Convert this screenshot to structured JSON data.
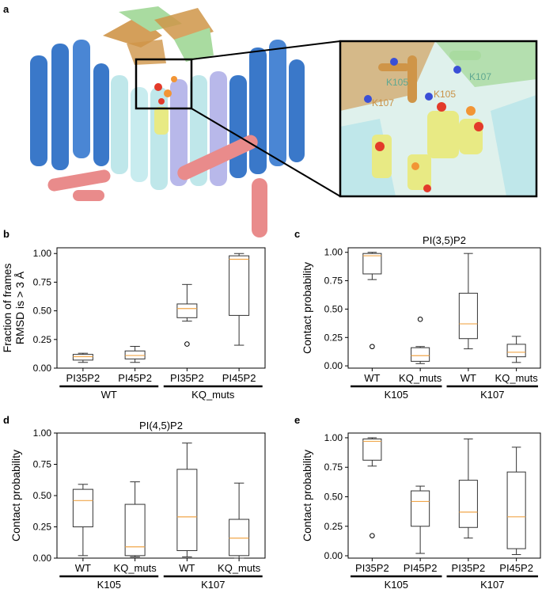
{
  "panels": {
    "a": "a",
    "b": "b",
    "c": "c",
    "d": "d",
    "e": "e"
  },
  "structure_inset": {
    "labels": [
      "K105",
      "K107",
      "K105",
      "K107"
    ],
    "label_colors": [
      "#5fa891",
      "#5fa891",
      "#c99146",
      "#c99146"
    ]
  },
  "colors": {
    "box": "#333333",
    "median": "#f0a64a",
    "helix_blue": "#3a78c9",
    "helix_cyan": "#bfe7ea",
    "helix_lavender": "#b8b8ea",
    "helix_pink": "#e98b8b",
    "beta_orange": "#cf9548",
    "beta_green": "#a9dba0",
    "lipid_yellow": "#e8ea84",
    "lipid_red": "#e33a2a",
    "lipid_orange": "#f29535"
  },
  "chart_data": [
    {
      "id": "b",
      "type": "box",
      "title": "",
      "ylabel": "Fraction of frames\nRMSD is > 3 Å",
      "ylim": [
        0,
        1.05
      ],
      "yticks": [
        "0.00",
        "0.25",
        "0.50",
        "0.75",
        "1.00"
      ],
      "categories": [
        "PI35P2",
        "PI45P2",
        "PI35P2",
        "PI45P2"
      ],
      "groups": [
        {
          "label": "WT",
          "span": [
            0,
            1
          ]
        },
        {
          "label": "KQ_muts",
          "span": [
            2,
            3
          ]
        }
      ],
      "boxes": [
        {
          "whislo": 0.05,
          "q1": 0.07,
          "med": 0.1,
          "q3": 0.12,
          "whishi": 0.13,
          "fliers": []
        },
        {
          "whislo": 0.05,
          "q1": 0.08,
          "med": 0.11,
          "q3": 0.15,
          "whishi": 0.19,
          "fliers": []
        },
        {
          "whislo": 0.41,
          "q1": 0.44,
          "med": 0.52,
          "q3": 0.56,
          "whishi": 0.73,
          "fliers": [
            0.21
          ]
        },
        {
          "whislo": 0.2,
          "q1": 0.46,
          "med": 0.95,
          "q3": 0.98,
          "whishi": 1.0,
          "fliers": []
        }
      ]
    },
    {
      "id": "c",
      "type": "box",
      "title": "PI(3,5)P2",
      "ylabel": "Contact probability",
      "ylim": [
        -0.02,
        1.04
      ],
      "yticks": [
        "0.00",
        "0.25",
        "0.50",
        "0.75",
        "1.00"
      ],
      "categories": [
        "WT",
        "KQ_muts",
        "WT",
        "KQ_muts"
      ],
      "groups": [
        {
          "label": "K105",
          "span": [
            0,
            1
          ]
        },
        {
          "label": "K107",
          "span": [
            2,
            3
          ]
        }
      ],
      "boxes": [
        {
          "whislo": 0.76,
          "q1": 0.81,
          "med": 0.97,
          "q3": 0.99,
          "whishi": 1.0,
          "fliers": [
            0.17
          ]
        },
        {
          "whislo": 0.02,
          "q1": 0.04,
          "med": 0.09,
          "q3": 0.16,
          "whishi": 0.17,
          "fliers": [
            0.41
          ]
        },
        {
          "whislo": 0.15,
          "q1": 0.24,
          "med": 0.37,
          "q3": 0.64,
          "whishi": 0.99,
          "fliers": []
        },
        {
          "whislo": 0.03,
          "q1": 0.08,
          "med": 0.12,
          "q3": 0.19,
          "whishi": 0.26,
          "fliers": []
        }
      ]
    },
    {
      "id": "d",
      "type": "box",
      "title": "PI(4,5)P2",
      "ylabel": "Contact probability",
      "ylim": [
        0,
        1.0
      ],
      "yticks": [
        "0.00",
        "0.25",
        "0.50",
        "0.75",
        "1.00"
      ],
      "categories": [
        "WT",
        "KQ_muts",
        "WT",
        "KQ_muts"
      ],
      "groups": [
        {
          "label": "K105",
          "span": [
            0,
            1
          ]
        },
        {
          "label": "K107",
          "span": [
            2,
            3
          ]
        }
      ],
      "boxes": [
        {
          "whislo": 0.02,
          "q1": 0.25,
          "med": 0.46,
          "q3": 0.55,
          "whishi": 0.59,
          "fliers": []
        },
        {
          "whislo": 0.01,
          "q1": 0.02,
          "med": 0.09,
          "q3": 0.43,
          "whishi": 0.61,
          "fliers": []
        },
        {
          "whislo": 0.01,
          "q1": 0.06,
          "med": 0.33,
          "q3": 0.71,
          "whishi": 0.92,
          "fliers": []
        },
        {
          "whislo": 0.0,
          "q1": 0.02,
          "med": 0.16,
          "q3": 0.31,
          "whishi": 0.6,
          "fliers": []
        }
      ]
    },
    {
      "id": "e",
      "type": "box",
      "title": "",
      "ylabel": "Contact probability",
      "ylim": [
        -0.02,
        1.04
      ],
      "yticks": [
        "0.00",
        "0.25",
        "0.50",
        "0.75",
        "1.00"
      ],
      "categories": [
        "PI35P2",
        "PI45P2",
        "PI35P2",
        "PI45P2"
      ],
      "groups": [
        {
          "label": "K105",
          "span": [
            0,
            1
          ]
        },
        {
          "label": "K107",
          "span": [
            2,
            3
          ]
        }
      ],
      "boxes": [
        {
          "whislo": 0.76,
          "q1": 0.81,
          "med": 0.97,
          "q3": 0.99,
          "whishi": 1.0,
          "fliers": [
            0.17
          ]
        },
        {
          "whislo": 0.02,
          "q1": 0.25,
          "med": 0.46,
          "q3": 0.55,
          "whishi": 0.59,
          "fliers": []
        },
        {
          "whislo": 0.15,
          "q1": 0.24,
          "med": 0.37,
          "q3": 0.64,
          "whishi": 0.99,
          "fliers": []
        },
        {
          "whislo": 0.01,
          "q1": 0.06,
          "med": 0.33,
          "q3": 0.71,
          "whishi": 0.92,
          "fliers": []
        }
      ]
    }
  ]
}
